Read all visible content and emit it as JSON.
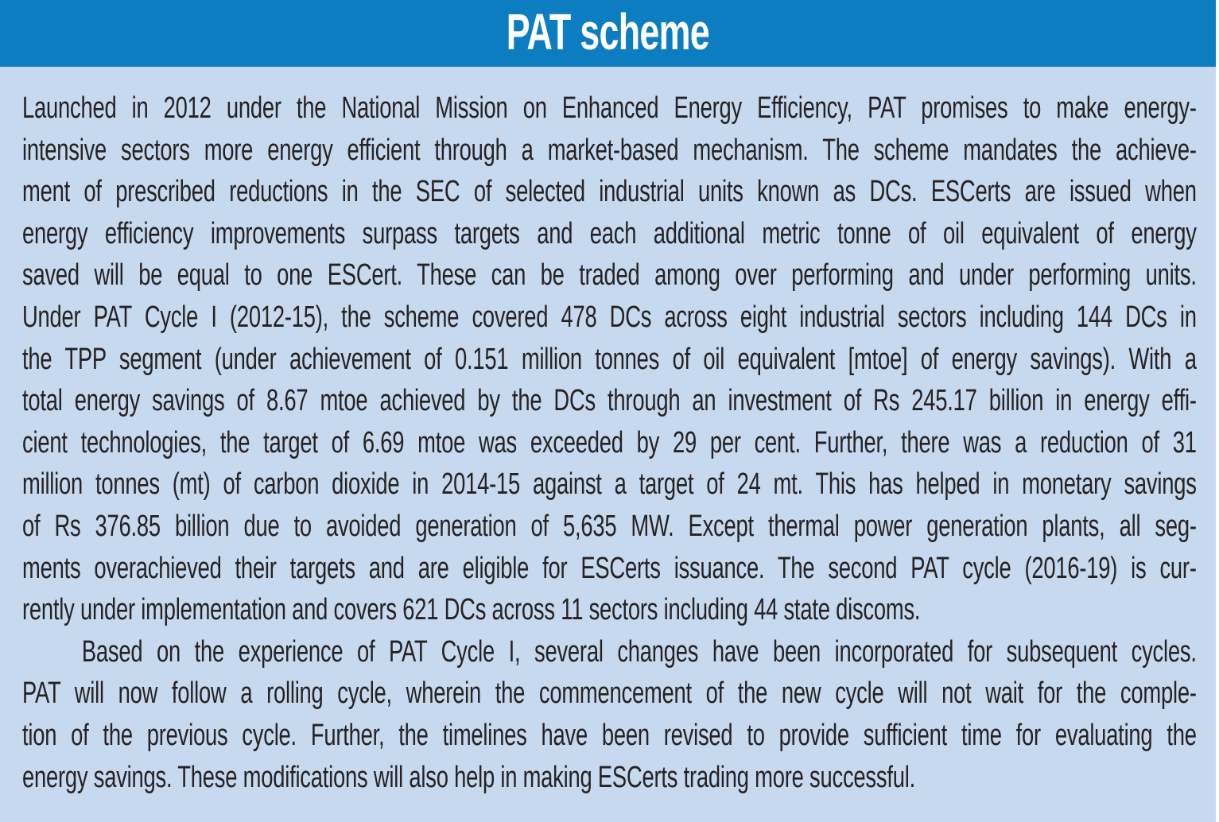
{
  "header": {
    "title": "PAT scheme",
    "background_color": "#0d7dc2",
    "title_color": "#ffffff"
  },
  "body": {
    "background_color": "#c6d9ee",
    "text_color": "#262223",
    "paragraphs": [
      {
        "indent_first_line": false,
        "lines": [
          "Launched in 2012 under the National Mission on Enhanced Energy Efficiency, PAT promises to make energy-",
          "intensive sectors more energy efficient through a market-based mechanism. The scheme mandates the achieve-",
          "ment of prescribed reductions in the SEC of selected industrial units known as DCs. ESCerts are issued when",
          "energy efficiency improvements surpass targets and each additional metric tonne of oil equivalent of energy",
          "saved will be equal to one ESCert. These can be traded among over performing and under performing units.",
          "Under PAT Cycle I (2012-15), the scheme covered 478 DCs across eight industrial sectors including 144 DCs in",
          "the TPP segment (under achievement of 0.151 million tonnes of oil equivalent [mtoe] of energy savings). With a",
          "total energy savings of 8.67 mtoe achieved by the DCs through an investment of Rs 245.17 billion in energy effi-",
          "cient technologies, the target of 6.69 mtoe was exceeded by 29 per cent. Further, there was a reduction of 31",
          "million tonnes (mt) of carbon dioxide in 2014-15 against a target of 24 mt. This has helped in monetary savings",
          "of Rs 376.85 billion due to avoided generation of 5,635 MW. Except thermal power generation plants, all seg-",
          "ments overachieved their targets and are eligible for ESCerts issuance. The second PAT cycle (2016-19) is cur-",
          "rently under implementation and covers 621 DCs across 11 sectors including 44 state discoms."
        ]
      },
      {
        "indent_first_line": true,
        "lines": [
          "Based on the experience of PAT Cycle I, several changes have been incorporated for subsequent cycles.",
          "PAT will now follow a rolling cycle, wherein the commencement of the new cycle will not wait for the comple-",
          "tion of the previous cycle. Further, the timelines have been revised to provide sufficient time for evaluating the",
          "energy savings. These modifications will also help in making ESCerts trading more successful."
        ]
      }
    ]
  }
}
